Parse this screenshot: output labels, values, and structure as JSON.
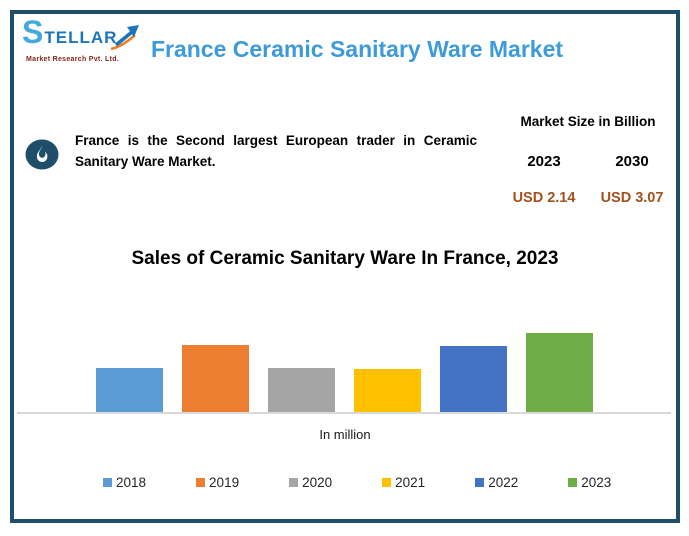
{
  "header": {
    "logo": {
      "brand": "STELLAR",
      "tagline": "Market Research Pvt. Ltd.",
      "arrow_icon": "trend-arrow-icon"
    },
    "title": "France Ceramic Sanitary Ware Market"
  },
  "highlight": {
    "icon": "flame-icon",
    "text": "France is the Second largest European trader in Ceramic Sanitary Ware Market."
  },
  "market_size": {
    "title": "Market Size in Billion",
    "columns": [
      {
        "year": "2023",
        "value": "USD 2.14"
      },
      {
        "year": "2030",
        "value": "USD 3.07"
      }
    ]
  },
  "chart_data": {
    "type": "bar",
    "title": "Sales of Ceramic Sanitary Ware In France, 2023",
    "xlabel": "In million",
    "ylabel": "",
    "categories": [
      "2018",
      "2019",
      "2020",
      "2021",
      "2022",
      "2023"
    ],
    "values": [
      45,
      68,
      45,
      44,
      67,
      80
    ],
    "value_note": "no numeric axis shown in source; values are relative bar heights — 2018≈2020≈2021, 2019≈2022, 2023 tallest",
    "colors": [
      "#5B9BD5",
      "#ED7D31",
      "#A5A5A5",
      "#FFC000",
      "#4472C4",
      "#70AD47"
    ],
    "legend": [
      "2018",
      "2019",
      "2020",
      "2021",
      "2022",
      "2023"
    ],
    "legend_position": "bottom",
    "grid": false,
    "axis_line_color": "#D9D9D9",
    "ylim": [
      0,
      114
    ]
  },
  "colors": {
    "card_border": "#1F4E6B",
    "title_blue": "#3D9BD9",
    "usd_value": "#A3511D",
    "flame_badge": "#1F4E6B",
    "logo_blue": "#1B75BC",
    "logo_arrow_orange": "#F47B20",
    "tagline_red": "#8A241C"
  }
}
